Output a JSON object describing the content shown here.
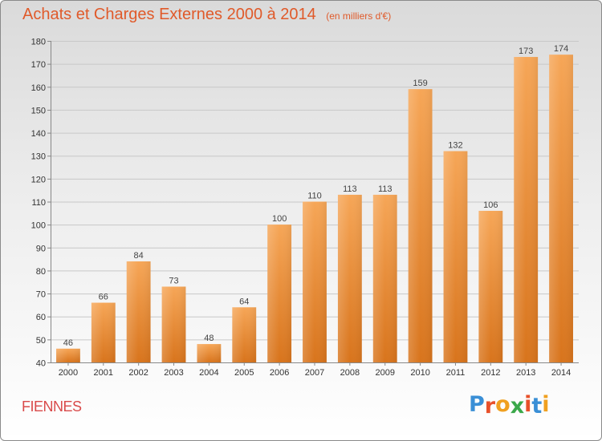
{
  "title": "Achats et Charges Externes 2000 à 2014",
  "unit_label": "(en milliers d'€)",
  "commune": "FIENNES",
  "logo": {
    "text": "Proxiti",
    "letters": [
      {
        "char": "P",
        "color": "#3a8fd6"
      },
      {
        "char": "r",
        "color": "#e8502a"
      },
      {
        "char": "o",
        "color": "#f0a020"
      },
      {
        "char": "x",
        "color": "#3aa84a"
      },
      {
        "char": "i",
        "color": "#e8502a"
      },
      {
        "char": "t",
        "color": "#3a8fd6"
      },
      {
        "char": "i",
        "color": "#f0a020"
      }
    ]
  },
  "colors": {
    "bar_light": "#f6a657",
    "bar_dark": "#d8741c",
    "title": "#e05a2a",
    "commune": "#d94a4a",
    "grid": "#c8c8c8"
  },
  "chart_data": {
    "type": "bar",
    "title": "Achats et Charges Externes 2000 à 2014",
    "subtitle": "(en milliers d'€)",
    "xlabel": "",
    "ylabel": "",
    "categories": [
      "2000",
      "2001",
      "2002",
      "2003",
      "2004",
      "2005",
      "2006",
      "2007",
      "2008",
      "2009",
      "2010",
      "2011",
      "2012",
      "2013",
      "2014"
    ],
    "values": [
      46,
      66,
      84,
      73,
      48,
      64,
      100,
      110,
      113,
      113,
      159,
      132,
      106,
      173,
      174
    ],
    "ylim": [
      40,
      180
    ],
    "yticks": [
      40,
      50,
      60,
      70,
      80,
      90,
      100,
      110,
      120,
      130,
      140,
      150,
      160,
      170,
      180
    ],
    "grid": true,
    "legend": "none"
  }
}
